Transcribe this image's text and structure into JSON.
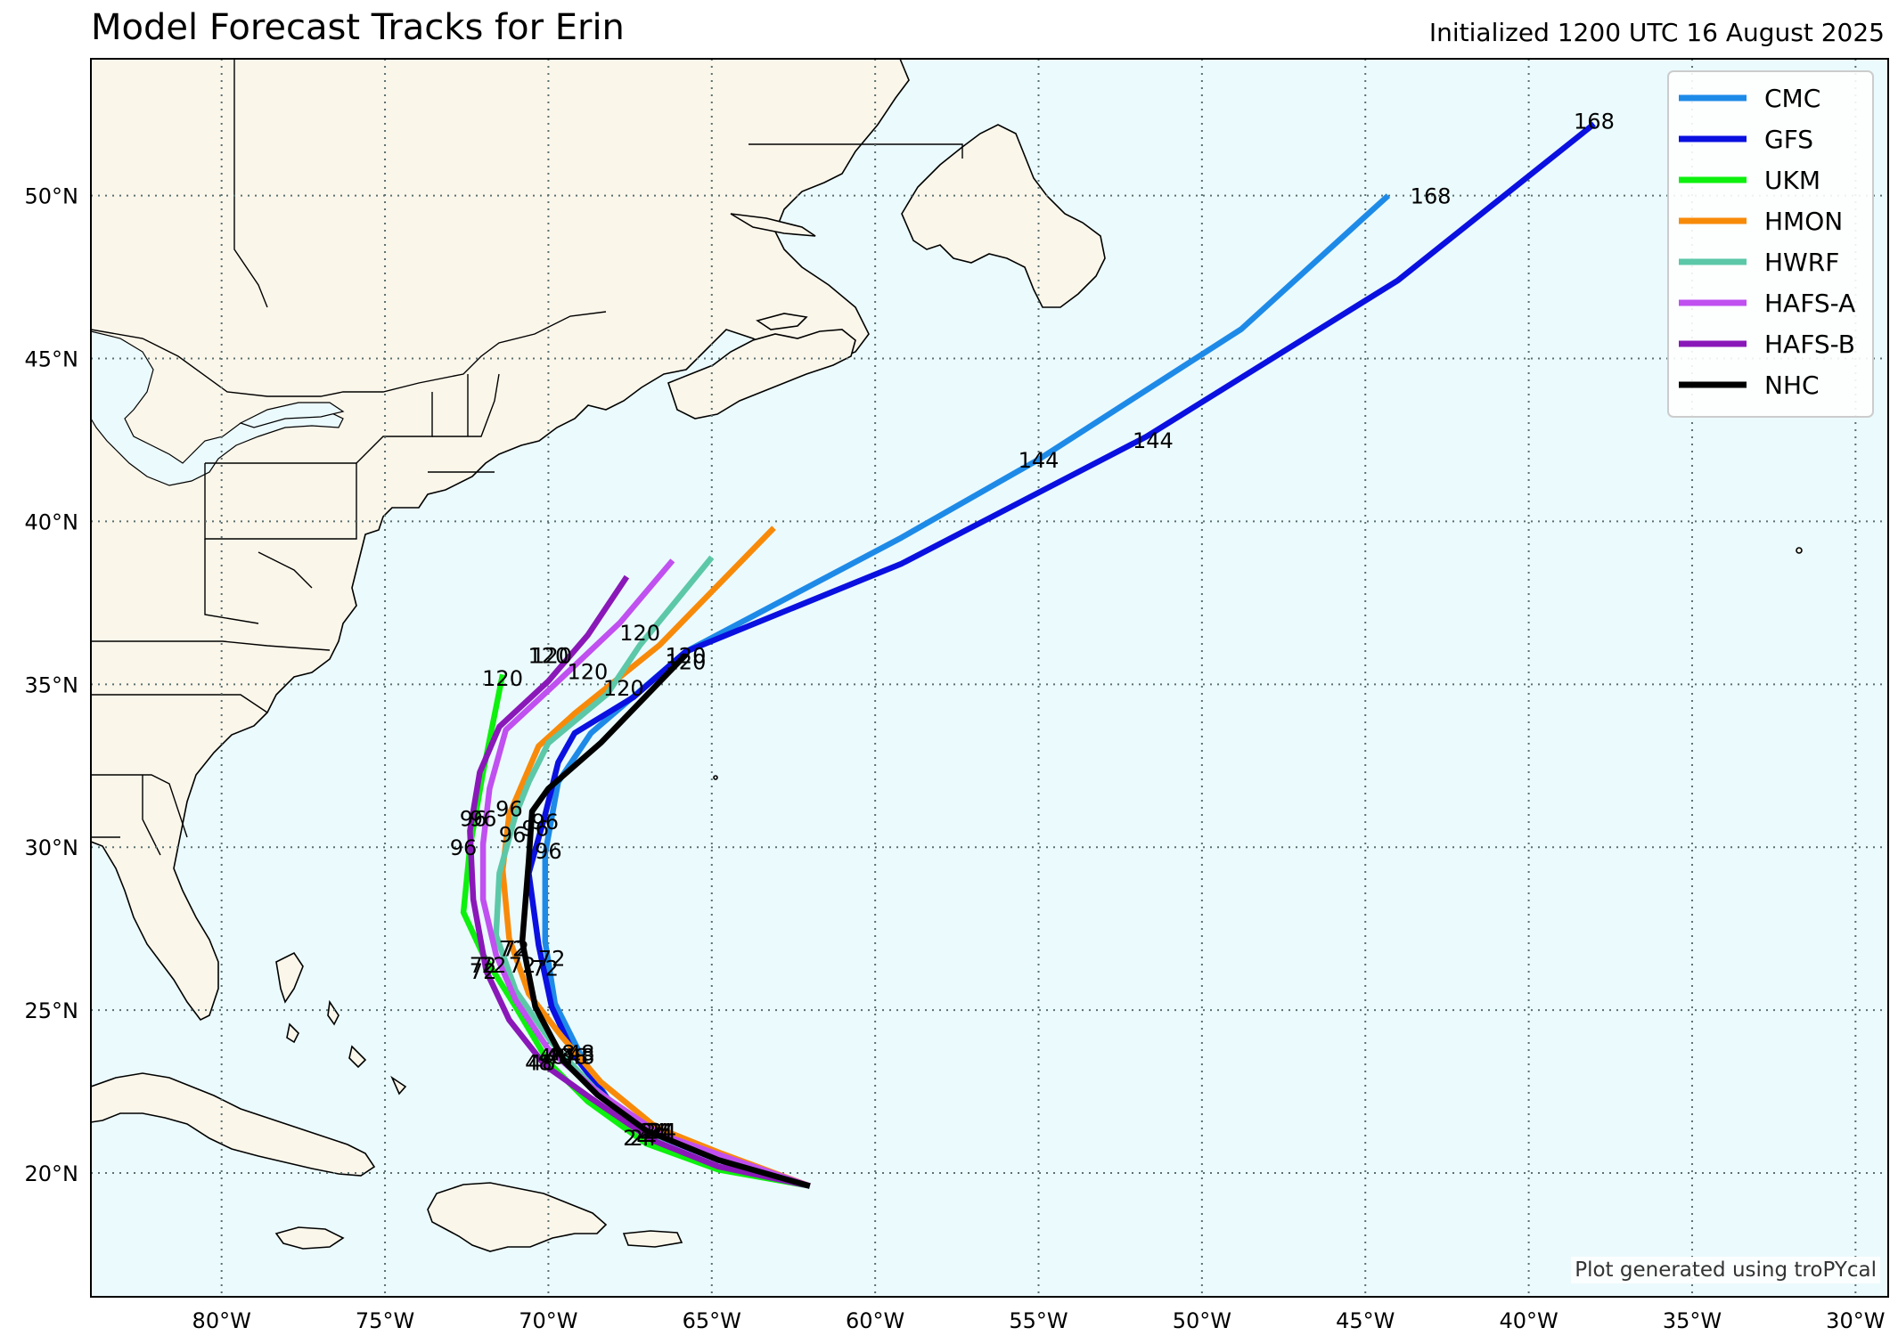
{
  "header": {
    "title": "Model Forecast Tracks for Erin",
    "subtitle": "Initialized 1200 UTC 16 August 2025"
  },
  "footer": {
    "credit": "Plot generated using troPYcal"
  },
  "colors": {
    "ocean": "#ebfafd",
    "land": "#fbf6ea"
  },
  "map": {
    "lon_range": [
      -84,
      -29
    ],
    "lat_range": [
      16.2,
      54.2
    ],
    "lon_ticks": [
      {
        "value": -80,
        "label": "80°W"
      },
      {
        "value": -75,
        "label": "75°W"
      },
      {
        "value": -70,
        "label": "70°W"
      },
      {
        "value": -65,
        "label": "65°W"
      },
      {
        "value": -60,
        "label": "60°W"
      },
      {
        "value": -55,
        "label": "55°W"
      },
      {
        "value": -50,
        "label": "50°W"
      },
      {
        "value": -45,
        "label": "45°W"
      },
      {
        "value": -40,
        "label": "40°W"
      },
      {
        "value": -35,
        "label": "35°W"
      },
      {
        "value": -30,
        "label": "30°W"
      }
    ],
    "lat_ticks": [
      {
        "value": 20,
        "label": "20°N"
      },
      {
        "value": 25,
        "label": "25°N"
      },
      {
        "value": 30,
        "label": "30°N"
      },
      {
        "value": 35,
        "label": "35°N"
      },
      {
        "value": 40,
        "label": "40°N"
      },
      {
        "value": 45,
        "label": "45°N"
      },
      {
        "value": 50,
        "label": "50°N"
      }
    ],
    "grid": true,
    "legend_position": "top-right"
  },
  "legend": [
    {
      "name": "CMC",
      "color": "#1e8ae8"
    },
    {
      "name": "GFS",
      "color": "#0a10e0"
    },
    {
      "name": "UKM",
      "color": "#0ef00e"
    },
    {
      "name": "HMON",
      "color": "#f88a0a"
    },
    {
      "name": "HWRF",
      "color": "#5cc8a8"
    },
    {
      "name": "HAFS-A",
      "color": "#c050f0"
    },
    {
      "name": "HAFS-B",
      "color": "#8a18b8"
    },
    {
      "name": "NHC",
      "color": "#000000"
    }
  ],
  "tracks": [
    {
      "name": "CMC",
      "color": "#1e8ae8",
      "points": [
        [
          -62.0,
          19.6
        ],
        [
          -64.8,
          20.4
        ],
        [
          -66.8,
          21.2
        ],
        [
          -68.2,
          22.3
        ],
        [
          -69.0,
          23.6
        ],
        [
          -69.8,
          25.2
        ],
        [
          -70.1,
          27.1
        ],
        [
          -70.1,
          29.8
        ],
        [
          -69.7,
          32.0
        ],
        [
          -68.7,
          33.5
        ],
        [
          -65.8,
          36.0
        ],
        [
          -59.2,
          39.5
        ],
        [
          -55.0,
          41.9
        ],
        [
          -48.8,
          45.9
        ],
        [
          -44.3,
          50.0
        ]
      ],
      "labels": [
        {
          "text": "24",
          "lon": -66.6,
          "lat": 21.3
        },
        {
          "text": "48",
          "lon": -69.0,
          "lat": 23.6
        },
        {
          "text": "72",
          "lon": -69.9,
          "lat": 26.6
        },
        {
          "text": "96",
          "lon": -70.1,
          "lat": 30.8
        },
        {
          "text": "120",
          "lon": -65.8,
          "lat": 35.9
        },
        {
          "text": "144",
          "lon": -55.0,
          "lat": 41.9
        },
        {
          "text": "168",
          "lon": -43.0,
          "lat": 50.0
        }
      ]
    },
    {
      "name": "GFS",
      "color": "#0a10e0",
      "points": [
        [
          -62.0,
          19.6
        ],
        [
          -64.8,
          20.4
        ],
        [
          -66.8,
          21.2
        ],
        [
          -68.2,
          22.3
        ],
        [
          -69.2,
          23.6
        ],
        [
          -69.9,
          25.1
        ],
        [
          -70.3,
          27.0
        ],
        [
          -70.6,
          29.2
        ],
        [
          -70.1,
          31.0
        ],
        [
          -69.7,
          32.6
        ],
        [
          -69.2,
          33.5
        ],
        [
          -67.4,
          34.6
        ],
        [
          -65.8,
          36.0
        ],
        [
          -59.2,
          38.7
        ],
        [
          -51.7,
          42.6
        ],
        [
          -44.0,
          47.4
        ],
        [
          -38.0,
          52.2
        ]
      ],
      "labels": [
        {
          "text": "24",
          "lon": -66.5,
          "lat": 21.3
        },
        {
          "text": "48",
          "lon": -69.0,
          "lat": 23.7
        },
        {
          "text": "72",
          "lon": -70.1,
          "lat": 26.3
        },
        {
          "text": "96",
          "lon": -70.0,
          "lat": 29.9
        },
        {
          "text": "120",
          "lon": -65.8,
          "lat": 35.7
        },
        {
          "text": "144",
          "lon": -51.5,
          "lat": 42.5
        },
        {
          "text": "168",
          "lon": -38.0,
          "lat": 52.3
        }
      ]
    },
    {
      "name": "UKM",
      "color": "#0ef00e",
      "points": [
        [
          -62.0,
          19.6
        ],
        [
          -64.8,
          20.1
        ],
        [
          -67.0,
          20.9
        ],
        [
          -68.8,
          22.2
        ],
        [
          -70.0,
          23.4
        ],
        [
          -71.0,
          25.1
        ],
        [
          -72.0,
          26.7
        ],
        [
          -72.6,
          28.0
        ],
        [
          -72.4,
          30.0
        ],
        [
          -72.0,
          32.3
        ],
        [
          -71.7,
          33.8
        ],
        [
          -71.4,
          35.3
        ]
      ],
      "labels": [
        {
          "text": "24",
          "lon": -67.3,
          "lat": 21.1
        },
        {
          "text": "48",
          "lon": -70.3,
          "lat": 23.4
        },
        {
          "text": "72",
          "lon": -72.0,
          "lat": 26.4
        },
        {
          "text": "96",
          "lon": -72.6,
          "lat": 30.0
        },
        {
          "text": "120",
          "lon": -71.4,
          "lat": 35.2
        }
      ]
    },
    {
      "name": "HMON",
      "color": "#f88a0a",
      "points": [
        [
          -62.0,
          19.6
        ],
        [
          -64.7,
          20.6
        ],
        [
          -66.7,
          21.4
        ],
        [
          -68.4,
          22.8
        ],
        [
          -69.6,
          24.2
        ],
        [
          -70.6,
          25.5
        ],
        [
          -71.2,
          27.2
        ],
        [
          -71.4,
          29.3
        ],
        [
          -71.2,
          31.0
        ],
        [
          -70.3,
          33.1
        ],
        [
          -69.2,
          34.1
        ],
        [
          -66.6,
          36.2
        ],
        [
          -63.1,
          39.8
        ]
      ],
      "labels": [
        {
          "text": "24",
          "lon": -66.5,
          "lat": 21.3
        },
        {
          "text": "48",
          "lon": -69.6,
          "lat": 23.7
        },
        {
          "text": "72",
          "lon": -71.0,
          "lat": 26.9
        },
        {
          "text": "96",
          "lon": -71.1,
          "lat": 30.4
        },
        {
          "text": "120",
          "lon": -68.8,
          "lat": 35.4
        }
      ]
    },
    {
      "name": "HWRF",
      "color": "#5cc8a8",
      "points": [
        [
          -62.0,
          19.6
        ],
        [
          -64.7,
          20.4
        ],
        [
          -66.8,
          21.2
        ],
        [
          -68.6,
          22.6
        ],
        [
          -69.9,
          24.0
        ],
        [
          -71.0,
          25.6
        ],
        [
          -71.6,
          27.3
        ],
        [
          -71.5,
          29.2
        ],
        [
          -71.0,
          31.0
        ],
        [
          -70.6,
          32.0
        ],
        [
          -70.0,
          33.2
        ],
        [
          -68.2,
          34.7
        ],
        [
          -67.2,
          36.2
        ],
        [
          -65.0,
          38.9
        ]
      ],
      "labels": [
        {
          "text": "24",
          "lon": -66.7,
          "lat": 21.3
        },
        {
          "text": "48",
          "lon": -69.7,
          "lat": 23.6
        },
        {
          "text": "72",
          "lon": -71.1,
          "lat": 26.9
        },
        {
          "text": "96",
          "lon": -71.2,
          "lat": 31.2
        },
        {
          "text": "120",
          "lon": -67.2,
          "lat": 36.6
        }
      ]
    },
    {
      "name": "HAFS-A",
      "color": "#c050f0",
      "points": [
        [
          -62.0,
          19.6
        ],
        [
          -64.6,
          20.5
        ],
        [
          -66.6,
          21.2
        ],
        [
          -68.5,
          22.5
        ],
        [
          -70.0,
          23.8
        ],
        [
          -71.0,
          25.3
        ],
        [
          -71.6,
          26.7
        ],
        [
          -72.0,
          28.4
        ],
        [
          -72.0,
          30.1
        ],
        [
          -71.8,
          31.8
        ],
        [
          -71.3,
          33.6
        ],
        [
          -69.8,
          35.0
        ],
        [
          -67.8,
          36.9
        ],
        [
          -66.2,
          38.8
        ]
      ],
      "labels": [
        {
          "text": "24",
          "lon": -66.8,
          "lat": 21.3
        },
        {
          "text": "48",
          "lon": -69.9,
          "lat": 23.6
        },
        {
          "text": "72",
          "lon": -71.7,
          "lat": 26.4
        },
        {
          "text": "96",
          "lon": -72.0,
          "lat": 30.9
        },
        {
          "text": "120",
          "lon": -69.9,
          "lat": 35.9
        }
      ]
    },
    {
      "name": "HAFS-B",
      "color": "#8a18b8",
      "points": [
        [
          -62.0,
          19.6
        ],
        [
          -64.8,
          20.2
        ],
        [
          -66.8,
          21.0
        ],
        [
          -68.7,
          22.3
        ],
        [
          -70.1,
          23.3
        ],
        [
          -71.2,
          24.7
        ],
        [
          -71.9,
          26.2
        ],
        [
          -72.3,
          28.4
        ],
        [
          -72.4,
          30.5
        ],
        [
          -72.1,
          32.3
        ],
        [
          -71.5,
          33.7
        ],
        [
          -70.0,
          35.1
        ],
        [
          -68.8,
          36.5
        ],
        [
          -67.6,
          38.3
        ]
      ],
      "labels": [
        {
          "text": "24",
          "lon": -67.1,
          "lat": 21.1
        },
        {
          "text": "48",
          "lon": -70.2,
          "lat": 23.4
        },
        {
          "text": "72",
          "lon": -72.0,
          "lat": 26.2
        },
        {
          "text": "96",
          "lon": -72.3,
          "lat": 30.9
        },
        {
          "text": "120",
          "lon": -70.0,
          "lat": 35.9
        }
      ]
    },
    {
      "name": "NHC",
      "color": "#000000",
      "points": [
        [
          -62.0,
          19.6
        ],
        [
          -64.8,
          20.4
        ],
        [
          -67.0,
          21.3
        ],
        [
          -68.5,
          22.4
        ],
        [
          -69.5,
          23.4
        ],
        [
          -70.4,
          25.1
        ],
        [
          -70.8,
          27.1
        ],
        [
          -70.6,
          29.6
        ],
        [
          -70.5,
          31.1
        ],
        [
          -70.0,
          31.8
        ],
        [
          -68.4,
          33.2
        ],
        [
          -65.8,
          35.9
        ]
      ],
      "labels": [
        {
          "text": "24",
          "lon": -66.6,
          "lat": 21.3
        },
        {
          "text": "48",
          "lon": -69.2,
          "lat": 23.6
        },
        {
          "text": "72",
          "lon": -70.8,
          "lat": 26.4
        },
        {
          "text": "96",
          "lon": -70.4,
          "lat": 30.6
        },
        {
          "text": "120",
          "lon": -67.7,
          "lat": 34.9
        }
      ]
    }
  ]
}
